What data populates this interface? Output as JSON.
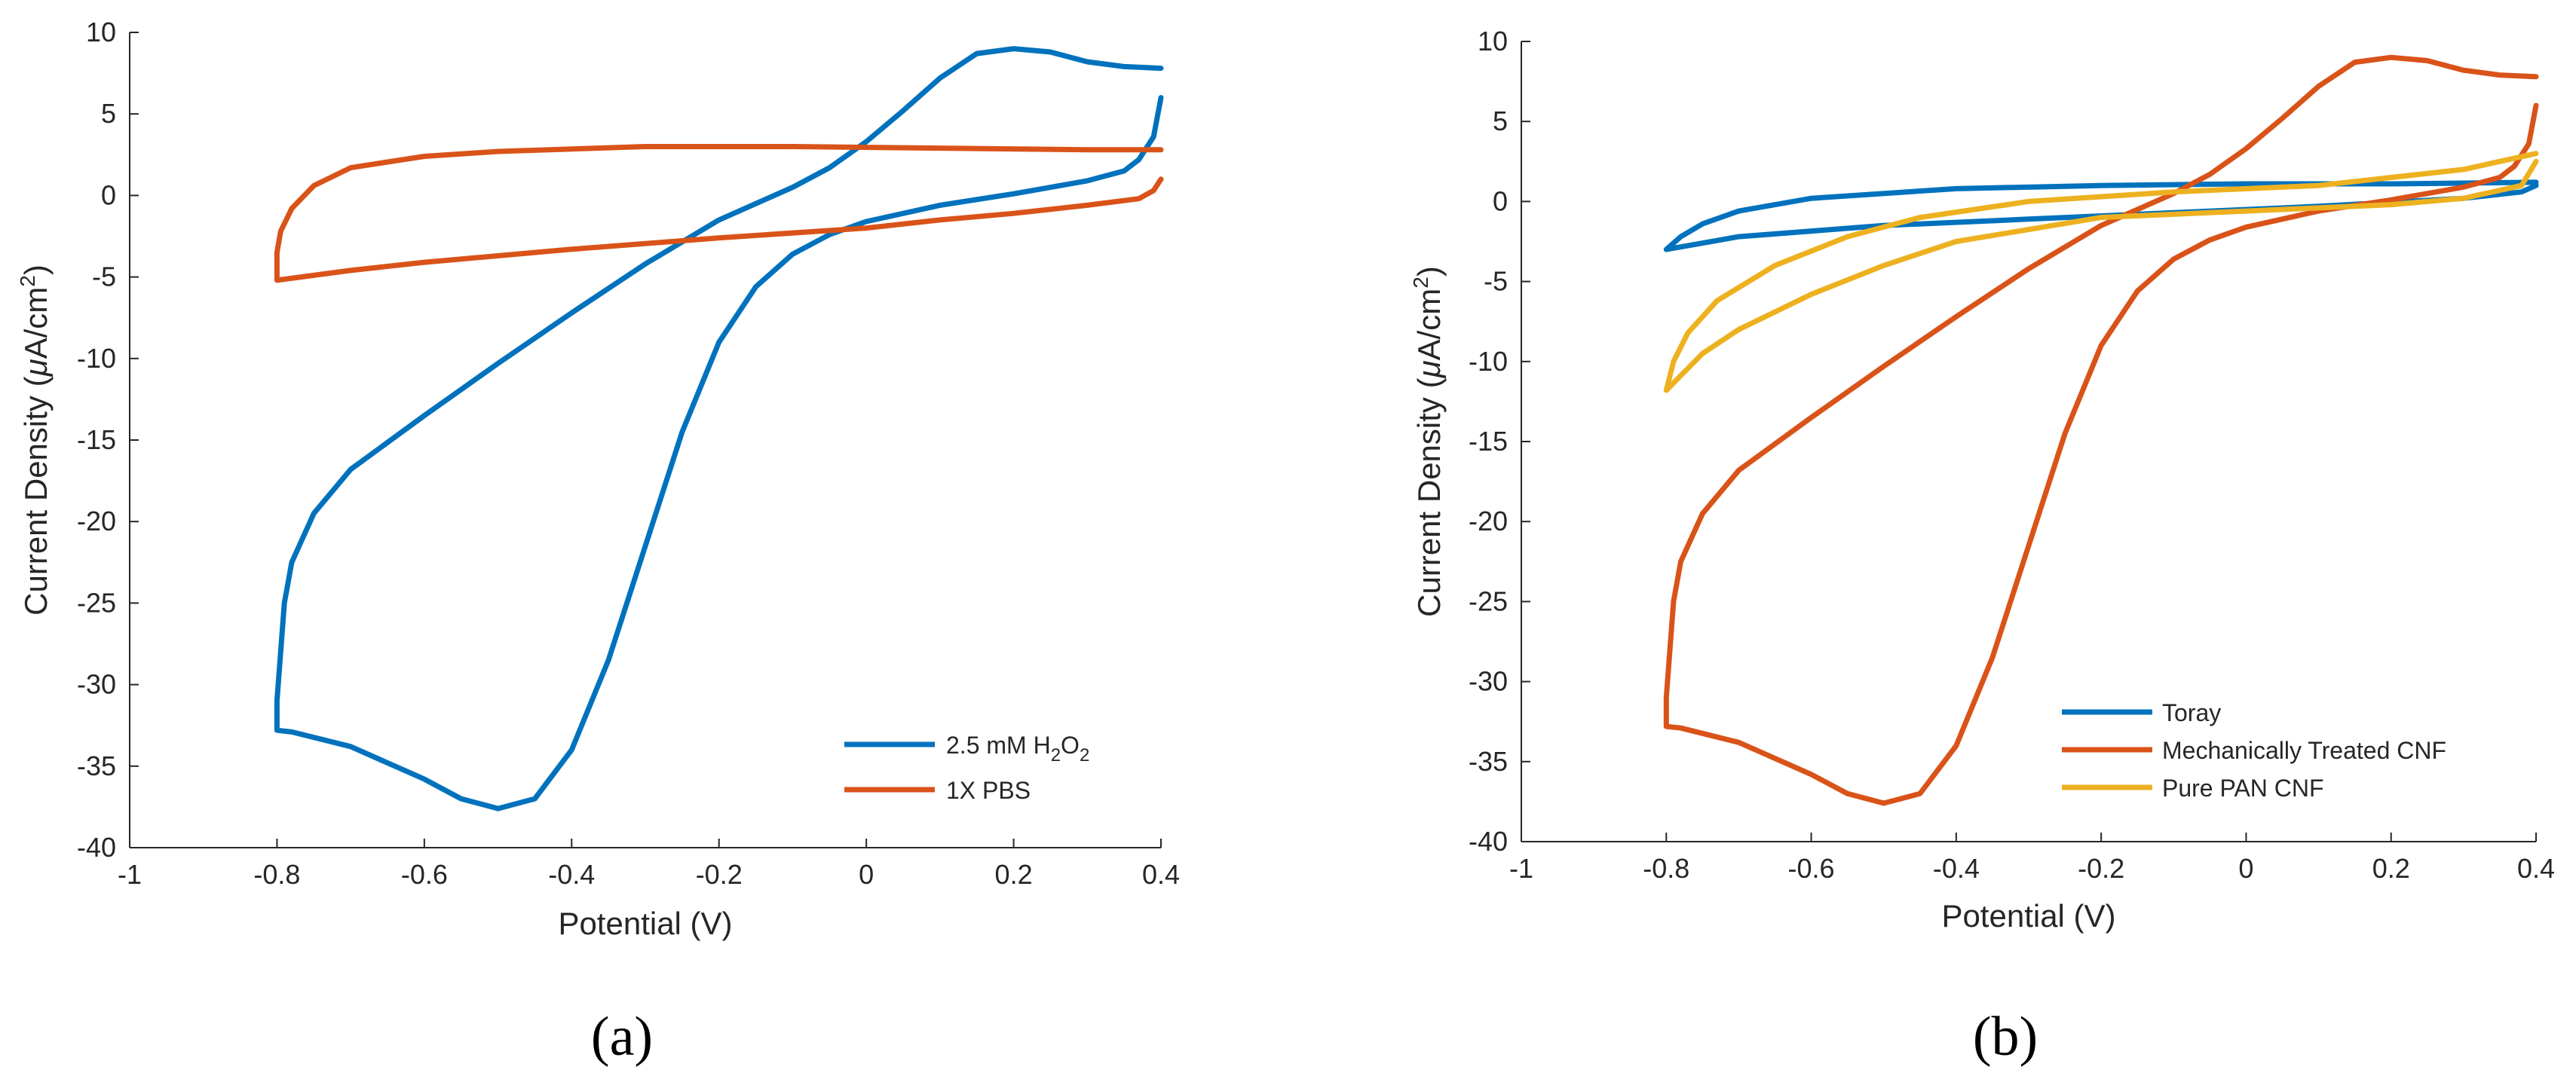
{
  "chart_data": [
    {
      "type": "line",
      "panel_label": "(a)",
      "xlabel": "Potential (V)",
      "ylabel_parts": {
        "pre": "Current Density (",
        "mu": "μ",
        "post": "A/cm",
        "sup": "2",
        "close": ")"
      },
      "xlim": [
        -1,
        0.4
      ],
      "ylim": [
        -40,
        10
      ],
      "xticks": [
        -1,
        -0.8,
        -0.6,
        -0.4,
        -0.2,
        0,
        0.2,
        0.4
      ],
      "yticks": [
        10,
        5,
        0,
        -5,
        -10,
        -15,
        -20,
        -25,
        -30,
        -35,
        -40
      ],
      "legend_position": "bottom-right",
      "series": [
        {
          "name": "2.5 mM H2O2",
          "name_parts": {
            "base": "2.5 mM H",
            "sub1": "2",
            "mid": "O",
            "sub2": "2"
          },
          "color": "#0072BD",
          "points": [
            [
              0.4,
              6
            ],
            [
              0.39,
              3.6
            ],
            [
              0.37,
              2.2
            ],
            [
              0.35,
              1.5
            ],
            [
              0.3,
              0.9
            ],
            [
              0.2,
              0.1
            ],
            [
              0.1,
              -0.6
            ],
            [
              0.0,
              -1.6
            ],
            [
              -0.05,
              -2.4
            ],
            [
              -0.1,
              -3.6
            ],
            [
              -0.15,
              -5.6
            ],
            [
              -0.2,
              -9
            ],
            [
              -0.25,
              -14.5
            ],
            [
              -0.3,
              -21.5
            ],
            [
              -0.35,
              -28.5
            ],
            [
              -0.4,
              -34
            ],
            [
              -0.45,
              -37
            ],
            [
              -0.5,
              -37.6
            ],
            [
              -0.55,
              -37
            ],
            [
              -0.6,
              -35.8
            ],
            [
              -0.7,
              -33.8
            ],
            [
              -0.78,
              -32.9
            ],
            [
              -0.8,
              -32.8
            ],
            [
              -0.8,
              -31
            ],
            [
              -0.795,
              -28
            ],
            [
              -0.79,
              -25
            ],
            [
              -0.78,
              -22.5
            ],
            [
              -0.75,
              -19.5
            ],
            [
              -0.7,
              -16.8
            ],
            [
              -0.6,
              -13.5
            ],
            [
              -0.5,
              -10.3
            ],
            [
              -0.4,
              -7.2
            ],
            [
              -0.3,
              -4.2
            ],
            [
              -0.2,
              -1.5
            ],
            [
              -0.1,
              0.5
            ],
            [
              -0.05,
              1.7
            ],
            [
              0.0,
              3.3
            ],
            [
              0.05,
              5.2
            ],
            [
              0.1,
              7.2
            ],
            [
              0.15,
              8.7
            ],
            [
              0.2,
              9.0
            ],
            [
              0.25,
              8.8
            ],
            [
              0.3,
              8.2
            ],
            [
              0.35,
              7.9
            ],
            [
              0.4,
              7.8
            ]
          ]
        },
        {
          "name": "1X PBS",
          "color": "#D95319",
          "points": [
            [
              0.4,
              1
            ],
            [
              0.39,
              0.3
            ],
            [
              0.37,
              -0.2
            ],
            [
              0.3,
              -0.6
            ],
            [
              0.2,
              -1.1
            ],
            [
              0.1,
              -1.5
            ],
            [
              0.0,
              -2.0
            ],
            [
              -0.2,
              -2.6
            ],
            [
              -0.4,
              -3.3
            ],
            [
              -0.6,
              -4.1
            ],
            [
              -0.7,
              -4.6
            ],
            [
              -0.8,
              -5.2
            ],
            [
              -0.8,
              -3.5
            ],
            [
              -0.795,
              -2.2
            ],
            [
              -0.78,
              -0.8
            ],
            [
              -0.75,
              0.6
            ],
            [
              -0.7,
              1.7
            ],
            [
              -0.6,
              2.4
            ],
            [
              -0.5,
              2.7
            ],
            [
              -0.3,
              3.0
            ],
            [
              -0.1,
              3.0
            ],
            [
              0.1,
              2.9
            ],
            [
              0.3,
              2.8
            ],
            [
              0.4,
              2.8
            ]
          ]
        }
      ]
    },
    {
      "type": "line",
      "panel_label": "(b)",
      "xlabel": "Potential (V)",
      "ylabel_parts": {
        "pre": "Current Density (",
        "mu": "μ",
        "post": "A/cm",
        "sup": "2",
        "close": ")"
      },
      "xlim": [
        -1,
        0.4
      ],
      "ylim": [
        -40,
        10
      ],
      "xticks": [
        -1,
        -0.8,
        -0.6,
        -0.4,
        -0.2,
        0,
        0.2,
        0.4
      ],
      "yticks": [
        10,
        5,
        0,
        -5,
        -10,
        -15,
        -20,
        -25,
        -30,
        -35,
        -40
      ],
      "legend_position": "bottom-right",
      "series": [
        {
          "name": "Toray",
          "color": "#0072BD",
          "points": [
            [
              0.4,
              1.0
            ],
            [
              0.38,
              0.6
            ],
            [
              0.3,
              0.2
            ],
            [
              0.1,
              -0.3
            ],
            [
              -0.1,
              -0.7
            ],
            [
              -0.3,
              -1.1
            ],
            [
              -0.5,
              -1.5
            ],
            [
              -0.7,
              -2.2
            ],
            [
              -0.8,
              -3.0
            ],
            [
              -0.78,
              -2.2
            ],
            [
              -0.75,
              -1.4
            ],
            [
              -0.7,
              -0.6
            ],
            [
              -0.6,
              0.2
            ],
            [
              -0.4,
              0.8
            ],
            [
              -0.2,
              1.0
            ],
            [
              0.0,
              1.1
            ],
            [
              0.2,
              1.1
            ],
            [
              0.4,
              1.2
            ]
          ]
        },
        {
          "name": "Mechanically Treated CNF",
          "color": "#D95319",
          "points": [
            [
              0.4,
              6
            ],
            [
              0.39,
              3.6
            ],
            [
              0.37,
              2.2
            ],
            [
              0.35,
              1.5
            ],
            [
              0.3,
              0.9
            ],
            [
              0.2,
              0.1
            ],
            [
              0.1,
              -0.6
            ],
            [
              0.0,
              -1.6
            ],
            [
              -0.05,
              -2.4
            ],
            [
              -0.1,
              -3.6
            ],
            [
              -0.15,
              -5.6
            ],
            [
              -0.2,
              -9
            ],
            [
              -0.25,
              -14.5
            ],
            [
              -0.3,
              -21.5
            ],
            [
              -0.35,
              -28.5
            ],
            [
              -0.4,
              -34
            ],
            [
              -0.45,
              -37
            ],
            [
              -0.5,
              -37.6
            ],
            [
              -0.55,
              -37
            ],
            [
              -0.6,
              -35.8
            ],
            [
              -0.7,
              -33.8
            ],
            [
              -0.78,
              -32.9
            ],
            [
              -0.8,
              -32.8
            ],
            [
              -0.8,
              -31
            ],
            [
              -0.795,
              -28
            ],
            [
              -0.79,
              -25
            ],
            [
              -0.78,
              -22.5
            ],
            [
              -0.75,
              -19.5
            ],
            [
              -0.7,
              -16.8
            ],
            [
              -0.6,
              -13.5
            ],
            [
              -0.5,
              -10.3
            ],
            [
              -0.4,
              -7.2
            ],
            [
              -0.3,
              -4.2
            ],
            [
              -0.2,
              -1.5
            ],
            [
              -0.1,
              0.5
            ],
            [
              -0.05,
              1.7
            ],
            [
              0.0,
              3.3
            ],
            [
              0.05,
              5.2
            ],
            [
              0.1,
              7.2
            ],
            [
              0.15,
              8.7
            ],
            [
              0.2,
              9.0
            ],
            [
              0.25,
              8.8
            ],
            [
              0.3,
              8.2
            ],
            [
              0.35,
              7.9
            ],
            [
              0.4,
              7.8
            ]
          ]
        },
        {
          "name": "Pure PAN CNF",
          "color": "#EDB120",
          "points": [
            [
              0.4,
              2.5
            ],
            [
              0.38,
              1.0
            ],
            [
              0.3,
              0.2
            ],
            [
              0.2,
              -0.2
            ],
            [
              0.0,
              -0.6
            ],
            [
              -0.2,
              -1.0
            ],
            [
              -0.4,
              -2.5
            ],
            [
              -0.5,
              -4.0
            ],
            [
              -0.6,
              -5.8
            ],
            [
              -0.7,
              -8.0
            ],
            [
              -0.75,
              -9.5
            ],
            [
              -0.8,
              -11.8
            ],
            [
              -0.79,
              -10.0
            ],
            [
              -0.77,
              -8.2
            ],
            [
              -0.73,
              -6.2
            ],
            [
              -0.65,
              -4.0
            ],
            [
              -0.55,
              -2.2
            ],
            [
              -0.45,
              -1.0
            ],
            [
              -0.3,
              0.0
            ],
            [
              -0.1,
              0.6
            ],
            [
              0.1,
              1.0
            ],
            [
              0.3,
              2.0
            ],
            [
              0.4,
              3.0
            ]
          ]
        }
      ]
    }
  ]
}
